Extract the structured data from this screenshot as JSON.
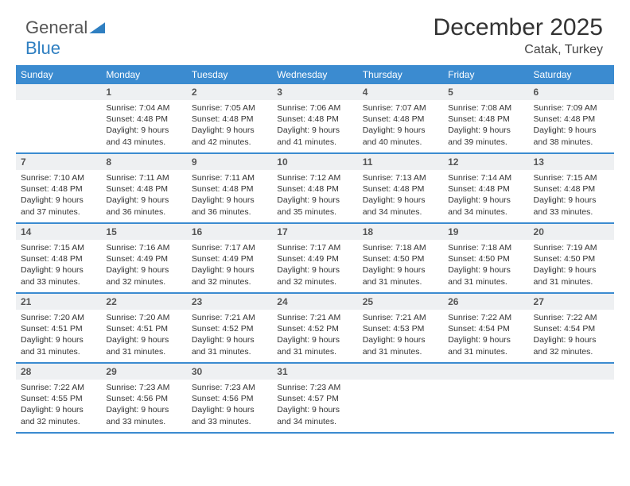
{
  "brand": {
    "part1": "General",
    "part2": "Blue"
  },
  "title": "December 2025",
  "location": "Catak, Turkey",
  "colors": {
    "header_bg": "#3b8bd0",
    "header_text": "#ffffff",
    "daynum_bg": "#eef0f2",
    "rule": "#3b8bd0",
    "brand_blue": "#2f7fc1"
  },
  "dayHeaders": [
    "Sunday",
    "Monday",
    "Tuesday",
    "Wednesday",
    "Thursday",
    "Friday",
    "Saturday"
  ],
  "weeks": [
    [
      {
        "n": "",
        "lines": [
          "",
          "",
          "",
          ""
        ]
      },
      {
        "n": "1",
        "lines": [
          "Sunrise: 7:04 AM",
          "Sunset: 4:48 PM",
          "Daylight: 9 hours",
          "and 43 minutes."
        ]
      },
      {
        "n": "2",
        "lines": [
          "Sunrise: 7:05 AM",
          "Sunset: 4:48 PM",
          "Daylight: 9 hours",
          "and 42 minutes."
        ]
      },
      {
        "n": "3",
        "lines": [
          "Sunrise: 7:06 AM",
          "Sunset: 4:48 PM",
          "Daylight: 9 hours",
          "and 41 minutes."
        ]
      },
      {
        "n": "4",
        "lines": [
          "Sunrise: 7:07 AM",
          "Sunset: 4:48 PM",
          "Daylight: 9 hours",
          "and 40 minutes."
        ]
      },
      {
        "n": "5",
        "lines": [
          "Sunrise: 7:08 AM",
          "Sunset: 4:48 PM",
          "Daylight: 9 hours",
          "and 39 minutes."
        ]
      },
      {
        "n": "6",
        "lines": [
          "Sunrise: 7:09 AM",
          "Sunset: 4:48 PM",
          "Daylight: 9 hours",
          "and 38 minutes."
        ]
      }
    ],
    [
      {
        "n": "7",
        "lines": [
          "Sunrise: 7:10 AM",
          "Sunset: 4:48 PM",
          "Daylight: 9 hours",
          "and 37 minutes."
        ]
      },
      {
        "n": "8",
        "lines": [
          "Sunrise: 7:11 AM",
          "Sunset: 4:48 PM",
          "Daylight: 9 hours",
          "and 36 minutes."
        ]
      },
      {
        "n": "9",
        "lines": [
          "Sunrise: 7:11 AM",
          "Sunset: 4:48 PM",
          "Daylight: 9 hours",
          "and 36 minutes."
        ]
      },
      {
        "n": "10",
        "lines": [
          "Sunrise: 7:12 AM",
          "Sunset: 4:48 PM",
          "Daylight: 9 hours",
          "and 35 minutes."
        ]
      },
      {
        "n": "11",
        "lines": [
          "Sunrise: 7:13 AM",
          "Sunset: 4:48 PM",
          "Daylight: 9 hours",
          "and 34 minutes."
        ]
      },
      {
        "n": "12",
        "lines": [
          "Sunrise: 7:14 AM",
          "Sunset: 4:48 PM",
          "Daylight: 9 hours",
          "and 34 minutes."
        ]
      },
      {
        "n": "13",
        "lines": [
          "Sunrise: 7:15 AM",
          "Sunset: 4:48 PM",
          "Daylight: 9 hours",
          "and 33 minutes."
        ]
      }
    ],
    [
      {
        "n": "14",
        "lines": [
          "Sunrise: 7:15 AM",
          "Sunset: 4:48 PM",
          "Daylight: 9 hours",
          "and 33 minutes."
        ]
      },
      {
        "n": "15",
        "lines": [
          "Sunrise: 7:16 AM",
          "Sunset: 4:49 PM",
          "Daylight: 9 hours",
          "and 32 minutes."
        ]
      },
      {
        "n": "16",
        "lines": [
          "Sunrise: 7:17 AM",
          "Sunset: 4:49 PM",
          "Daylight: 9 hours",
          "and 32 minutes."
        ]
      },
      {
        "n": "17",
        "lines": [
          "Sunrise: 7:17 AM",
          "Sunset: 4:49 PM",
          "Daylight: 9 hours",
          "and 32 minutes."
        ]
      },
      {
        "n": "18",
        "lines": [
          "Sunrise: 7:18 AM",
          "Sunset: 4:50 PM",
          "Daylight: 9 hours",
          "and 31 minutes."
        ]
      },
      {
        "n": "19",
        "lines": [
          "Sunrise: 7:18 AM",
          "Sunset: 4:50 PM",
          "Daylight: 9 hours",
          "and 31 minutes."
        ]
      },
      {
        "n": "20",
        "lines": [
          "Sunrise: 7:19 AM",
          "Sunset: 4:50 PM",
          "Daylight: 9 hours",
          "and 31 minutes."
        ]
      }
    ],
    [
      {
        "n": "21",
        "lines": [
          "Sunrise: 7:20 AM",
          "Sunset: 4:51 PM",
          "Daylight: 9 hours",
          "and 31 minutes."
        ]
      },
      {
        "n": "22",
        "lines": [
          "Sunrise: 7:20 AM",
          "Sunset: 4:51 PM",
          "Daylight: 9 hours",
          "and 31 minutes."
        ]
      },
      {
        "n": "23",
        "lines": [
          "Sunrise: 7:21 AM",
          "Sunset: 4:52 PM",
          "Daylight: 9 hours",
          "and 31 minutes."
        ]
      },
      {
        "n": "24",
        "lines": [
          "Sunrise: 7:21 AM",
          "Sunset: 4:52 PM",
          "Daylight: 9 hours",
          "and 31 minutes."
        ]
      },
      {
        "n": "25",
        "lines": [
          "Sunrise: 7:21 AM",
          "Sunset: 4:53 PM",
          "Daylight: 9 hours",
          "and 31 minutes."
        ]
      },
      {
        "n": "26",
        "lines": [
          "Sunrise: 7:22 AM",
          "Sunset: 4:54 PM",
          "Daylight: 9 hours",
          "and 31 minutes."
        ]
      },
      {
        "n": "27",
        "lines": [
          "Sunrise: 7:22 AM",
          "Sunset: 4:54 PM",
          "Daylight: 9 hours",
          "and 32 minutes."
        ]
      }
    ],
    [
      {
        "n": "28",
        "lines": [
          "Sunrise: 7:22 AM",
          "Sunset: 4:55 PM",
          "Daylight: 9 hours",
          "and 32 minutes."
        ]
      },
      {
        "n": "29",
        "lines": [
          "Sunrise: 7:23 AM",
          "Sunset: 4:56 PM",
          "Daylight: 9 hours",
          "and 33 minutes."
        ]
      },
      {
        "n": "30",
        "lines": [
          "Sunrise: 7:23 AM",
          "Sunset: 4:56 PM",
          "Daylight: 9 hours",
          "and 33 minutes."
        ]
      },
      {
        "n": "31",
        "lines": [
          "Sunrise: 7:23 AM",
          "Sunset: 4:57 PM",
          "Daylight: 9 hours",
          "and 34 minutes."
        ]
      },
      {
        "n": "",
        "lines": [
          "",
          "",
          "",
          ""
        ]
      },
      {
        "n": "",
        "lines": [
          "",
          "",
          "",
          ""
        ]
      },
      {
        "n": "",
        "lines": [
          "",
          "",
          "",
          ""
        ]
      }
    ]
  ]
}
